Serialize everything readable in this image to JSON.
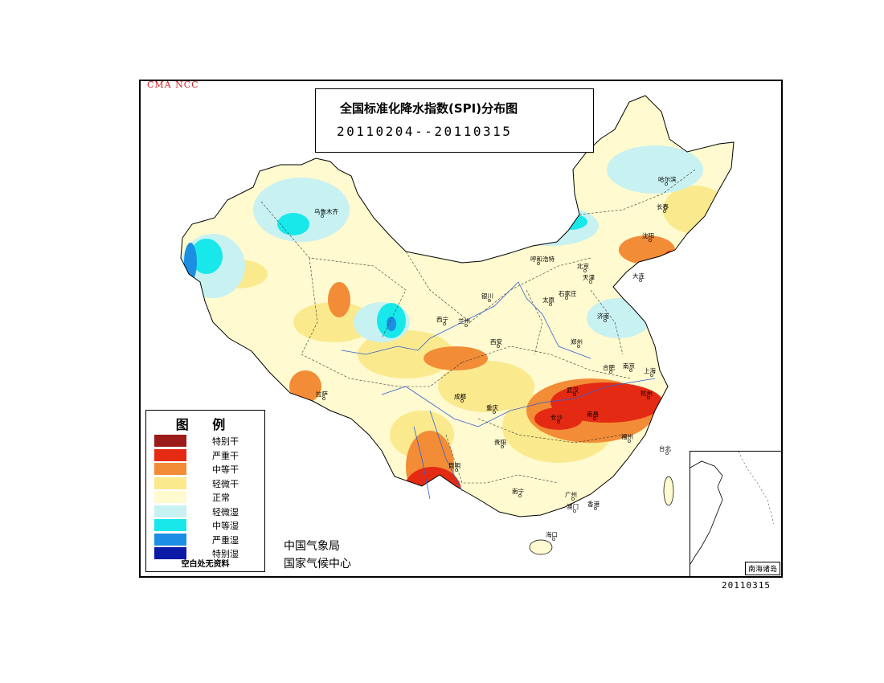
{
  "org_tag": "CMA  NCC",
  "title": {
    "main": "全国标准化降水指数(SPI)分布图",
    "period": "20110204--20110315"
  },
  "legend": {
    "title": "图 例",
    "items": [
      {
        "label": "特别干",
        "color": "#9b1b1b"
      },
      {
        "label": "严重干",
        "color": "#e52a14"
      },
      {
        "label": "中等干",
        "color": "#f28c37"
      },
      {
        "label": "轻微干",
        "color": "#fbe98e"
      },
      {
        "label": "正常",
        "color": "#fffacf"
      },
      {
        "label": "轻微湿",
        "color": "#c8f1f2"
      },
      {
        "label": "中等湿",
        "color": "#18e8ea"
      },
      {
        "label": "严重湿",
        "color": "#1c8fe4"
      },
      {
        "label": "特别湿",
        "color": "#0c1aa8"
      }
    ],
    "note": "空白处无资料"
  },
  "agency": {
    "line1": "中国气象局",
    "line2": "国家气候中心"
  },
  "inset_label": "南海诸岛",
  "date_stamp": "20110315",
  "cities": [
    "乌鲁木齐",
    "哈尔滨",
    "长春",
    "沈阳",
    "大连",
    "呼和浩特",
    "北京",
    "天津",
    "太原",
    "石家庄",
    "济南",
    "郑州",
    "银川",
    "兰州",
    "西宁",
    "西安",
    "合肥",
    "南京",
    "上海",
    "杭州",
    "武汉",
    "长沙",
    "南昌",
    "福州",
    "台北",
    "成都",
    "重庆",
    "贵阳",
    "昆明",
    "南宁",
    "广州",
    "香港",
    "澳门",
    "海口",
    "拉萨"
  ]
}
